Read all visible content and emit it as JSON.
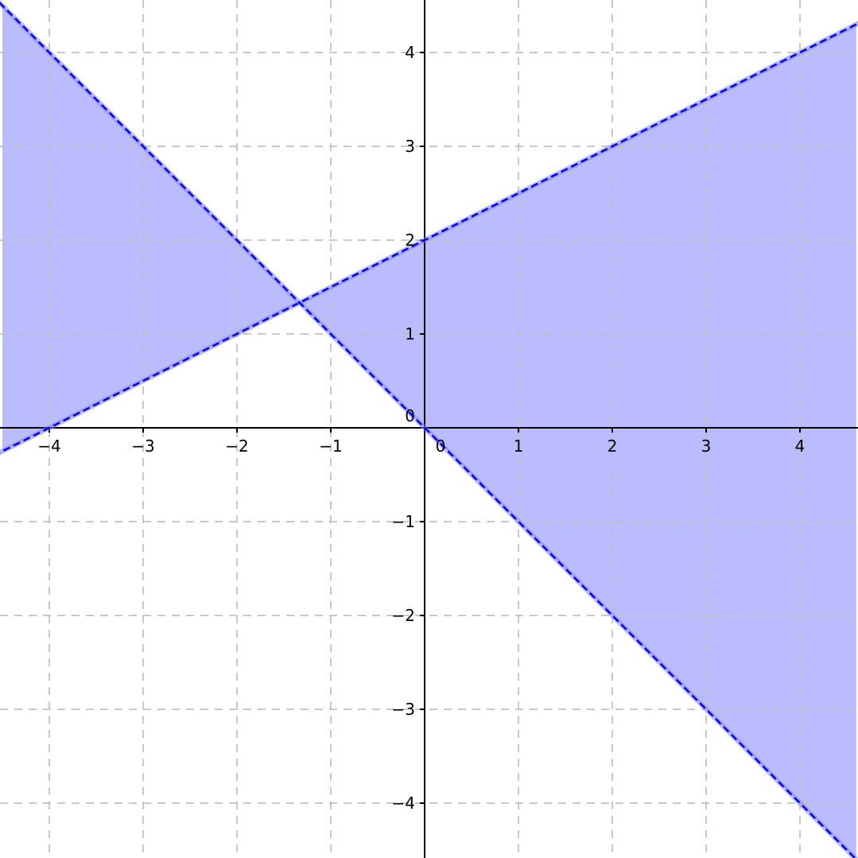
{
  "chart_data": {
    "type": "line",
    "title": "",
    "xlabel": "",
    "ylabel": "",
    "xlim": [
      -4.5,
      4.6
    ],
    "ylim": [
      -4.6,
      4.55
    ],
    "grid": true,
    "x_ticks": [
      {
        "value": -4,
        "label": "−4"
      },
      {
        "value": -3,
        "label": "−3"
      },
      {
        "value": -2,
        "label": "−2"
      },
      {
        "value": -1,
        "label": "−1"
      },
      {
        "value": 0,
        "label": "0"
      },
      {
        "value": 1,
        "label": "1"
      },
      {
        "value": 2,
        "label": "2"
      },
      {
        "value": 3,
        "label": "3"
      },
      {
        "value": 4,
        "label": "4"
      }
    ],
    "y_ticks": [
      {
        "value": 4,
        "label": "4"
      },
      {
        "value": 3,
        "label": "3"
      },
      {
        "value": 2,
        "label": "2"
      },
      {
        "value": 1,
        "label": "1"
      },
      {
        "value": -1,
        "label": "−1"
      },
      {
        "value": -2,
        "label": "−2"
      },
      {
        "value": -3,
        "label": "−3"
      },
      {
        "value": -4,
        "label": "−4"
      }
    ],
    "series": [
      {
        "name": "y = 0.5x + 2",
        "slope": 0.5,
        "intercept": 2,
        "style": "dashed"
      },
      {
        "name": "y = -x",
        "slope": -1,
        "intercept": 0,
        "style": "dashed"
      }
    ],
    "shaded_regions": [
      {
        "name": "left-wedge",
        "description": "between lines, x < -4/3",
        "vertices": [
          [
            -4.5,
            -0.25
          ],
          [
            -1.3333,
            1.3333
          ],
          [
            -4.5,
            4.5
          ]
        ]
      },
      {
        "name": "right-wedge",
        "description": "between lines, x > -4/3",
        "vertices": [
          [
            -1.3333,
            1.3333
          ],
          [
            4.6,
            4.3
          ],
          [
            4.6,
            -4.6
          ]
        ]
      }
    ],
    "intersection": [
      -1.3333,
      1.3333
    ]
  },
  "colors": {
    "fill": "#bbbbff",
    "line": "#0000ee",
    "halo": "#8080ff",
    "grid": "#c0c0c0",
    "axis": "#000000"
  }
}
